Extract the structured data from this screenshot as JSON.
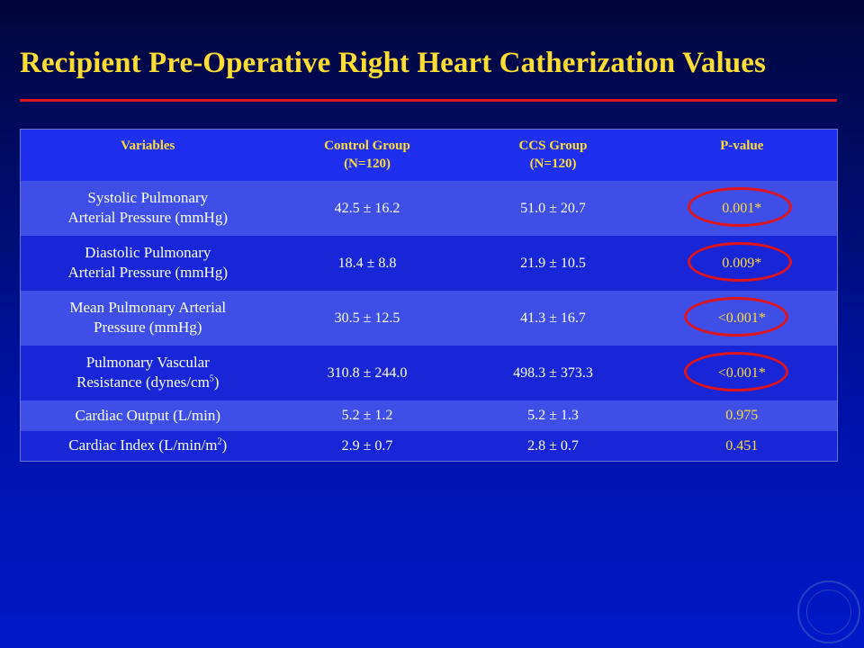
{
  "slide": {
    "title": "Recipient Pre-Operative Right Heart Catherization Values"
  },
  "table": {
    "headers": [
      {
        "line1": "Variables",
        "line2": ""
      },
      {
        "line1": "Control Group",
        "line2": "(N=120)"
      },
      {
        "line1": "CCS Group",
        "line2": "(N=120)"
      },
      {
        "line1": "P-value",
        "line2": ""
      }
    ],
    "rows": [
      {
        "var_line1": "Systolic Pulmonary",
        "var_line2": "Arterial Pressure (mmHg)",
        "var_sup": "",
        "control": "42.5 ± 16.2",
        "ccs": "51.0 ± 20.7",
        "p": "0.001*",
        "circled": true
      },
      {
        "var_line1": "Diastolic Pulmonary",
        "var_line2": "Arterial Pressure (mmHg)",
        "var_sup": "",
        "control": "18.4 ± 8.8",
        "ccs": "21.9 ± 10.5",
        "p": "0.009*",
        "circled": true
      },
      {
        "var_line1": "Mean Pulmonary Arterial",
        "var_line2": "Pressure (mmHg)",
        "var_sup": "",
        "control": "30.5 ± 12.5",
        "ccs": "41.3 ± 16.7",
        "p": "<0.001*",
        "circled": true
      },
      {
        "var_line1": "Pulmonary Vascular",
        "var_line2": "Resistance (dynes/cm",
        "var_sup": "5",
        "var_tail": ")",
        "control": "310.8 ± 244.0",
        "ccs": "498.3 ± 373.3",
        "p": "<0.001*",
        "circled": true
      },
      {
        "var_line1": "Cardiac Output (L/min)",
        "var_line2": "",
        "var_sup": "",
        "control": "5.2 ± 1.2",
        "ccs": "5.2 ± 1.3",
        "p": "0.975",
        "circled": false
      },
      {
        "var_line1": "Cardiac Index (L/min/m",
        "var_line2": "",
        "var_sup": "2",
        "var_tail": ")",
        "control": "2.9 ± 0.7",
        "ccs": "2.8 ± 0.7",
        "p": "0.451",
        "circled": false
      }
    ]
  },
  "logo": {
    "name": "university-seal-icon"
  }
}
